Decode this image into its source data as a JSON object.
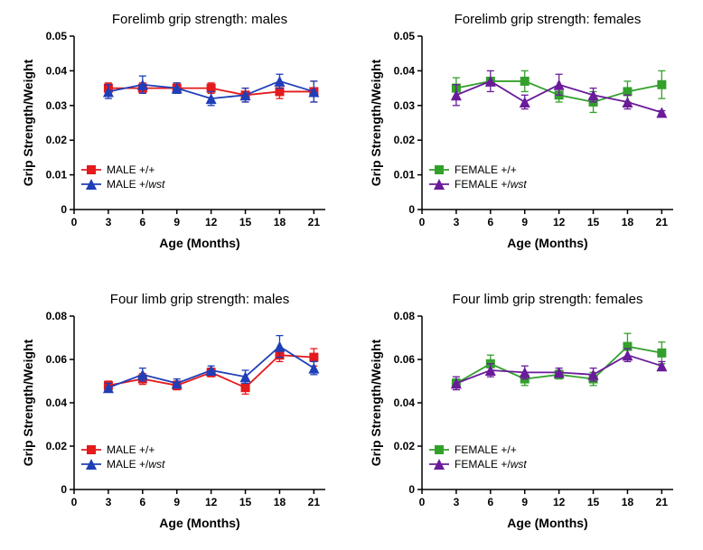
{
  "background_color": "#ffffff",
  "axis_color": "#000000",
  "title_fontsize": 15,
  "axis_label_fontsize": 14,
  "tick_fontsize": 12,
  "legend_fontsize": 12,
  "line_width": 1.8,
  "marker_size": 5,
  "error_cap_width": 4,
  "panels": [
    {
      "id": "panel-forelimb-males",
      "title": "Forelimb grip strength: males",
      "xlabel": "Age (Months)",
      "ylabel": "Grip Strength/Weight",
      "xlim": [
        0,
        22
      ],
      "ylim": [
        0,
        0.05
      ],
      "xticks": [
        0,
        3,
        6,
        9,
        12,
        15,
        18,
        21
      ],
      "yticks": [
        0,
        0.01,
        0.02,
        0.03,
        0.04,
        0.05
      ],
      "legend_pos": "bottom-left",
      "series": [
        {
          "label": "MALE +/+",
          "label_parts": [
            {
              "t": "MALE +/+",
              "italic": false
            }
          ],
          "color": "#e41a1c",
          "marker": "square",
          "x": [
            3,
            6,
            9,
            12,
            15,
            18,
            21
          ],
          "y": [
            0.035,
            0.035,
            0.035,
            0.035,
            0.033,
            0.034,
            0.034
          ],
          "err": [
            0.0015,
            0.0015,
            0.0015,
            0.0015,
            0.002,
            0.002,
            0.003
          ]
        },
        {
          "label": "MALE +/wst",
          "label_parts": [
            {
              "t": "MALE +/",
              "italic": false
            },
            {
              "t": "wst",
              "italic": true
            }
          ],
          "color": "#1f3fb8",
          "marker": "triangle",
          "x": [
            3,
            6,
            9,
            12,
            15,
            18,
            21
          ],
          "y": [
            0.034,
            0.036,
            0.035,
            0.032,
            0.033,
            0.037,
            0.034
          ],
          "err": [
            0.002,
            0.0025,
            0.0015,
            0.002,
            0.002,
            0.002,
            0.003
          ]
        }
      ]
    },
    {
      "id": "panel-forelimb-females",
      "title": "Forelimb grip strength: females",
      "xlabel": "Age (Months)",
      "ylabel": "Grip Strength/Weight",
      "xlim": [
        0,
        22
      ],
      "ylim": [
        0,
        0.05
      ],
      "xticks": [
        0,
        3,
        6,
        9,
        12,
        15,
        18,
        21
      ],
      "yticks": [
        0,
        0.01,
        0.02,
        0.03,
        0.04,
        0.05
      ],
      "legend_pos": "bottom-left",
      "series": [
        {
          "label": "FEMALE +/+",
          "label_parts": [
            {
              "t": "FEMALE +/+",
              "italic": false
            }
          ],
          "color": "#33a02c",
          "marker": "square",
          "x": [
            3,
            6,
            9,
            12,
            15,
            18,
            21
          ],
          "y": [
            0.035,
            0.037,
            0.037,
            0.033,
            0.031,
            0.034,
            0.036
          ],
          "err": [
            0.003,
            0.001,
            0.003,
            0.002,
            0.003,
            0.003,
            0.004
          ]
        },
        {
          "label": "FEMALE +/wst",
          "label_parts": [
            {
              "t": "FEMALE +/",
              "italic": false
            },
            {
              "t": "wst",
              "italic": true
            }
          ],
          "color": "#6a1b9a",
          "marker": "triangle",
          "x": [
            3,
            6,
            9,
            12,
            15,
            18,
            21
          ],
          "y": [
            0.033,
            0.037,
            0.031,
            0.036,
            0.033,
            0.031,
            0.028
          ],
          "err": [
            0.003,
            0.003,
            0.002,
            0.003,
            0.002,
            0.002,
            0.0005
          ]
        }
      ]
    },
    {
      "id": "panel-fourlimb-males",
      "title": "Four limb grip strength: males",
      "xlabel": "Age (Months)",
      "ylabel": "Grip Strength/Weight",
      "xlim": [
        0,
        22
      ],
      "ylim": [
        0,
        0.08
      ],
      "xticks": [
        0,
        3,
        6,
        9,
        12,
        15,
        18,
        21
      ],
      "yticks": [
        0,
        0.02,
        0.04,
        0.06,
        0.08
      ],
      "legend_pos": "bottom-left",
      "series": [
        {
          "label": "MALE +/+",
          "label_parts": [
            {
              "t": "MALE +/+",
              "italic": false
            }
          ],
          "color": "#e41a1c",
          "marker": "square",
          "x": [
            3,
            6,
            9,
            12,
            15,
            18,
            21
          ],
          "y": [
            0.048,
            0.051,
            0.048,
            0.054,
            0.047,
            0.062,
            0.061
          ],
          "err": [
            0.002,
            0.0025,
            0.002,
            0.002,
            0.003,
            0.003,
            0.004
          ]
        },
        {
          "label": "MALE +/wst",
          "label_parts": [
            {
              "t": "MALE +/",
              "italic": false
            },
            {
              "t": "wst",
              "italic": true
            }
          ],
          "color": "#1f3fb8",
          "marker": "triangle",
          "x": [
            3,
            6,
            9,
            12,
            15,
            18,
            21
          ],
          "y": [
            0.047,
            0.053,
            0.049,
            0.055,
            0.052,
            0.066,
            0.056
          ],
          "err": [
            0.002,
            0.003,
            0.002,
            0.002,
            0.003,
            0.005,
            0.003
          ]
        }
      ]
    },
    {
      "id": "panel-fourlimb-females",
      "title": "Four limb grip strength: females",
      "xlabel": "Age (Months)",
      "ylabel": "Grip Strength/Weight",
      "xlim": [
        0,
        22
      ],
      "ylim": [
        0,
        0.08
      ],
      "xticks": [
        0,
        3,
        6,
        9,
        12,
        15,
        18,
        21
      ],
      "yticks": [
        0,
        0.02,
        0.04,
        0.06,
        0.08
      ],
      "legend_pos": "bottom-left",
      "series": [
        {
          "label": "FEMALE +/+",
          "label_parts": [
            {
              "t": "FEMALE +/+",
              "italic": false
            }
          ],
          "color": "#33a02c",
          "marker": "square",
          "x": [
            3,
            6,
            9,
            12,
            15,
            18,
            21
          ],
          "y": [
            0.049,
            0.058,
            0.051,
            0.053,
            0.051,
            0.066,
            0.063
          ],
          "err": [
            0.002,
            0.004,
            0.003,
            0.002,
            0.003,
            0.006,
            0.005
          ]
        },
        {
          "label": "FEMALE +/wst",
          "label_parts": [
            {
              "t": "FEMALE +/",
              "italic": false
            },
            {
              "t": "wst",
              "italic": true
            }
          ],
          "color": "#6a1b9a",
          "marker": "triangle",
          "x": [
            3,
            6,
            9,
            12,
            15,
            18,
            21
          ],
          "y": [
            0.049,
            0.055,
            0.054,
            0.054,
            0.053,
            0.062,
            0.057
          ],
          "err": [
            0.003,
            0.003,
            0.003,
            0.002,
            0.003,
            0.003,
            0.002
          ]
        }
      ]
    }
  ]
}
